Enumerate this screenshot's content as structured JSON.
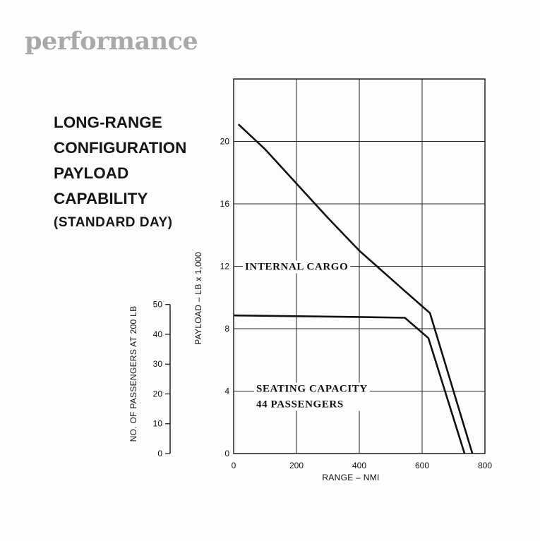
{
  "header": {
    "section": "performance"
  },
  "chart_data": {
    "type": "line",
    "title_lines": [
      "LONG-RANGE",
      "CONFIGURATION",
      "PAYLOAD",
      "CAPABILITY"
    ],
    "subtitle": "(STANDARD DAY)",
    "xlabel": "RANGE – NMI",
    "ylabel": "PAYLOAD – LB x 1,000",
    "y2label": "NO. OF PASSENGERS AT 200 LB",
    "xlim": [
      0,
      800
    ],
    "ylim": [
      0,
      24
    ],
    "y2lim": [
      0,
      50
    ],
    "x_ticks": [
      "0",
      "200",
      "400",
      "600",
      "800"
    ],
    "x_tick_values": [
      0,
      200,
      400,
      600,
      800
    ],
    "y_ticks": [
      "0",
      "4",
      "8",
      "12",
      "16",
      "20"
    ],
    "y_tick_values": [
      0,
      4,
      8,
      12,
      16,
      20
    ],
    "y2_ticks": [
      "0",
      "10",
      "20",
      "30",
      "40",
      "50"
    ],
    "y2_tick_values": [
      0,
      10,
      20,
      30,
      40,
      50
    ],
    "grid": true,
    "series": [
      {
        "name": "INTERNAL CARGO",
        "x": [
          15,
          100,
          200,
          300,
          400,
          540,
          625,
          760
        ],
        "y": [
          21.1,
          19.5,
          17.3,
          15.1,
          13.0,
          10.5,
          9.0,
          0
        ]
      },
      {
        "name": "SEATING CAPACITY 44 PASSENGERS",
        "x": [
          0,
          200,
          400,
          545,
          620,
          735
        ],
        "y": [
          8.85,
          8.8,
          8.75,
          8.7,
          7.4,
          0
        ]
      }
    ],
    "annotations": [
      {
        "text": "INTERNAL CARGO",
        "series": 0
      },
      {
        "text_lines": [
          "SEATING CAPACITY",
          "44 PASSENGERS"
        ],
        "series": 1
      }
    ]
  }
}
